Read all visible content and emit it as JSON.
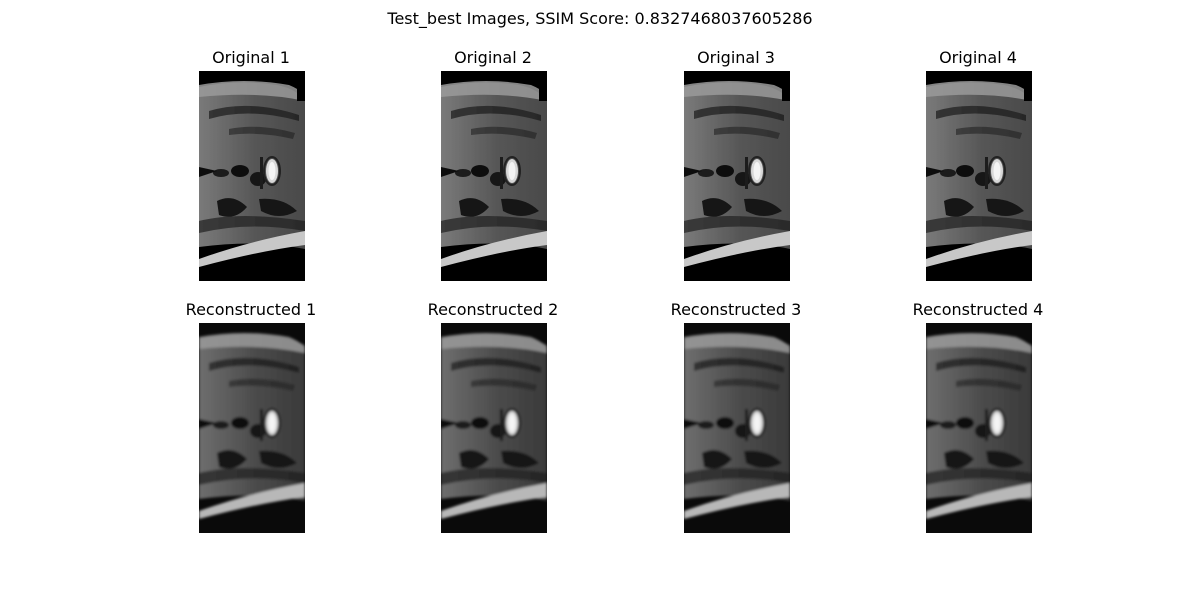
{
  "title": "Test_best Images, SSIM Score: 0.8327468037605286",
  "panels": {
    "original": [
      {
        "label": "Original 1"
      },
      {
        "label": "Original 2"
      },
      {
        "label": "Original 3"
      },
      {
        "label": "Original 4"
      }
    ],
    "reconstructed": [
      {
        "label": "Reconstructed 1"
      },
      {
        "label": "Reconstructed 2"
      },
      {
        "label": "Reconstructed 3"
      },
      {
        "label": "Reconstructed 4"
      }
    ]
  }
}
